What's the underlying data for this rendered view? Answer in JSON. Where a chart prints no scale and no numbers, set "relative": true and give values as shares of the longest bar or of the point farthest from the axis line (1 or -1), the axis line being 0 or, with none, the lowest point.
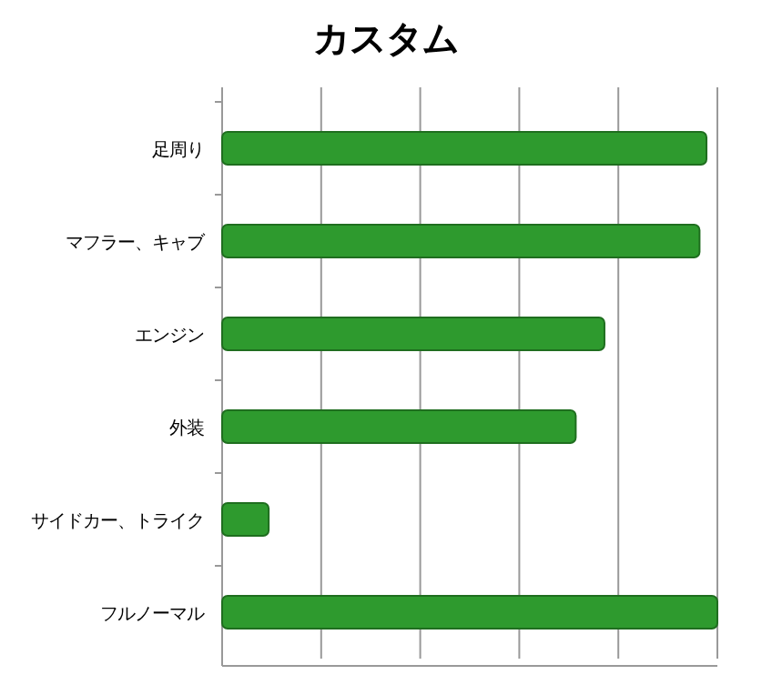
{
  "chart_data": {
    "type": "bar",
    "orientation": "horizontal",
    "relative": true,
    "title": "カスタム",
    "categories": [
      "足周り",
      "マフラー、キャブ",
      "エンジン",
      "外装",
      "サイドカー、トライク",
      "フルノーマル"
    ],
    "values": [
      0.978,
      0.964,
      0.772,
      0.714,
      0.094,
      1
    ],
    "color": "#2e9a2e",
    "grid": "x"
  }
}
